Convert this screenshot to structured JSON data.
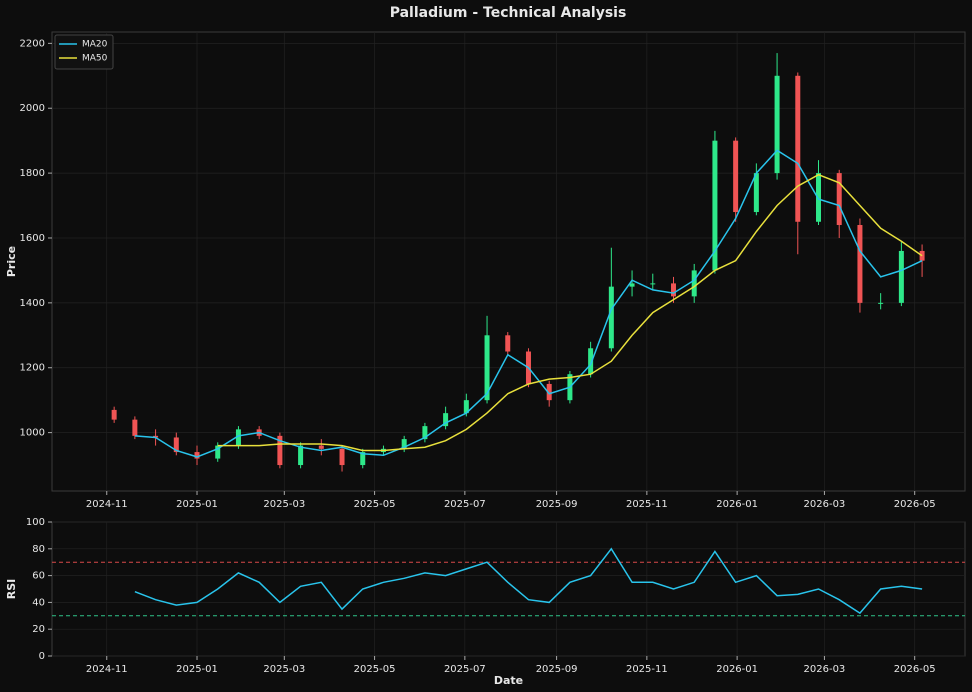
{
  "chart_data": [
    {
      "type": "candlestick",
      "title": "Palladium - Technical Analysis",
      "ylabel": "Price",
      "x": [
        "2024-11-06",
        "2024-11-20",
        "2024-12-04",
        "2024-12-18",
        "2025-01-01",
        "2025-01-15",
        "2025-01-29",
        "2025-02-12",
        "2025-02-26",
        "2025-03-12",
        "2025-03-26",
        "2025-04-09",
        "2025-04-23",
        "2025-05-07",
        "2025-05-21",
        "2025-06-04",
        "2025-06-18",
        "2025-07-02",
        "2025-07-16",
        "2025-07-30",
        "2025-08-13",
        "2025-08-27",
        "2025-09-10",
        "2025-09-24",
        "2025-10-08",
        "2025-10-22",
        "2025-11-05",
        "2025-11-19",
        "2025-12-03",
        "2025-12-17",
        "2025-12-31",
        "2026-01-14",
        "2026-01-28",
        "2026-02-11",
        "2026-02-25",
        "2026-03-11",
        "2026-03-25",
        "2026-04-08",
        "2026-04-22",
        "2026-05-06"
      ],
      "open": [
        1070,
        1040,
        990,
        985,
        940,
        920,
        960,
        1010,
        990,
        900,
        960,
        950,
        900,
        940,
        950,
        980,
        1020,
        1060,
        1100,
        1300,
        1250,
        1150,
        1100,
        1180,
        1260,
        1450,
        1460,
        1460,
        1420,
        1500,
        1900,
        1680,
        1800,
        2100,
        1650,
        1800,
        1640,
        1400,
        1400,
        1560
      ],
      "high": [
        1080,
        1050,
        1010,
        1000,
        960,
        970,
        1020,
        1020,
        1000,
        970,
        980,
        960,
        950,
        960,
        990,
        1030,
        1080,
        1120,
        1360,
        1310,
        1260,
        1160,
        1190,
        1280,
        1570,
        1500,
        1490,
        1480,
        1520,
        1930,
        1910,
        1830,
        2170,
        2110,
        1840,
        1810,
        1660,
        1430,
        1590,
        1580
      ],
      "low": [
        1030,
        980,
        960,
        930,
        900,
        910,
        950,
        980,
        890,
        890,
        930,
        880,
        890,
        930,
        940,
        970,
        1010,
        1050,
        1090,
        1240,
        1140,
        1080,
        1090,
        1170,
        1250,
        1420,
        1440,
        1400,
        1400,
        1490,
        1650,
        1670,
        1780,
        1550,
        1640,
        1600,
        1370,
        1380,
        1390,
        1480
      ],
      "close": [
        1040,
        990,
        985,
        940,
        920,
        960,
        1010,
        990,
        900,
        960,
        950,
        900,
        940,
        950,
        980,
        1020,
        1060,
        1100,
        1300,
        1250,
        1150,
        1100,
        1180,
        1260,
        1450,
        1460,
        1460,
        1420,
        1500,
        1900,
        1680,
        1800,
        2100,
        1650,
        1800,
        1640,
        1400,
        1400,
        1560,
        1530
      ],
      "up_color": "#2ee88a",
      "down_color": "#f05454",
      "series": [
        {
          "name": "MA20",
          "color": "#29c4ec",
          "values": [
            null,
            990,
            985,
            945,
            925,
            950,
            990,
            1000,
            975,
            955,
            945,
            955,
            935,
            930,
            955,
            985,
            1030,
            1060,
            1120,
            1240,
            1200,
            1120,
            1140,
            1210,
            1380,
            1470,
            1440,
            1430,
            1470,
            1560,
            1660,
            1800,
            1870,
            1830,
            1720,
            1700,
            1560,
            1480,
            1500,
            1530
          ]
        },
        {
          "name": "MA50",
          "color": "#e8e03c",
          "values": [
            null,
            null,
            null,
            null,
            null,
            960,
            960,
            960,
            965,
            965,
            965,
            960,
            945,
            945,
            950,
            955,
            975,
            1010,
            1060,
            1120,
            1150,
            1165,
            1170,
            1180,
            1220,
            1300,
            1370,
            1410,
            1450,
            1500,
            1530,
            1620,
            1700,
            1760,
            1795,
            1770,
            1700,
            1630,
            1590,
            1545
          ]
        }
      ],
      "legend": "upper left",
      "grid": true,
      "xlim": [
        "2024-09-25",
        "2026-06-04"
      ],
      "xticks": [
        {
          "value": "2024-11-01",
          "label": "2024-11"
        },
        {
          "value": "2025-01-01",
          "label": "2025-01"
        },
        {
          "value": "2025-03-01",
          "label": "2025-03"
        },
        {
          "value": "2025-05-01",
          "label": "2025-05"
        },
        {
          "value": "2025-07-01",
          "label": "2025-07"
        },
        {
          "value": "2025-09-01",
          "label": "2025-09"
        },
        {
          "value": "2025-11-01",
          "label": "2025-11"
        },
        {
          "value": "2026-01-01",
          "label": "2026-01"
        },
        {
          "value": "2026-03-01",
          "label": "2026-03"
        },
        {
          "value": "2026-05-01",
          "label": "2026-05"
        }
      ],
      "ylim": [
        820,
        2235
      ],
      "yticks": [
        1000,
        1200,
        1400,
        1600,
        1800,
        2000,
        2200
      ]
    },
    {
      "type": "line",
      "ylabel": "RSI",
      "xlabel": "Date",
      "x": [
        "2024-11-06",
        "2024-11-20",
        "2024-12-04",
        "2024-12-18",
        "2025-01-01",
        "2025-01-15",
        "2025-01-29",
        "2025-02-12",
        "2025-02-26",
        "2025-03-12",
        "2025-03-26",
        "2025-04-09",
        "2025-04-23",
        "2025-05-07",
        "2025-05-21",
        "2025-06-04",
        "2025-06-18",
        "2025-07-02",
        "2025-07-16",
        "2025-07-30",
        "2025-08-13",
        "2025-08-27",
        "2025-09-10",
        "2025-09-24",
        "2025-10-08",
        "2025-10-22",
        "2025-11-05",
        "2025-11-19",
        "2025-12-03",
        "2025-12-17",
        "2025-12-31",
        "2026-01-14",
        "2026-01-28",
        "2026-02-11",
        "2026-02-25",
        "2026-03-11",
        "2026-03-25",
        "2026-04-08",
        "2026-04-22",
        "2026-05-06"
      ],
      "series": [
        {
          "name": "RSI",
          "color": "#29c4ec",
          "values": [
            null,
            48,
            42,
            38,
            40,
            50,
            62,
            55,
            40,
            52,
            55,
            35,
            50,
            55,
            58,
            62,
            60,
            65,
            70,
            55,
            42,
            40,
            55,
            60,
            80,
            55,
            55,
            50,
            55,
            78,
            55,
            60,
            45,
            46,
            50,
            42,
            32,
            50,
            52,
            50
          ]
        }
      ],
      "hlines": [
        {
          "value": 70,
          "color": "#d84a4a"
        },
        {
          "value": 30,
          "color": "#2ec48a"
        }
      ],
      "grid": true,
      "xlim": [
        "2024-09-25",
        "2026-06-04"
      ],
      "xticks": [
        {
          "value": "2024-11-01",
          "label": "2024-11"
        },
        {
          "value": "2025-01-01",
          "label": "2025-01"
        },
        {
          "value": "2025-03-01",
          "label": "2025-03"
        },
        {
          "value": "2025-05-01",
          "label": "2025-05"
        },
        {
          "value": "2025-07-01",
          "label": "2025-07"
        },
        {
          "value": "2025-09-01",
          "label": "2025-09"
        },
        {
          "value": "2025-11-01",
          "label": "2025-11"
        },
        {
          "value": "2026-01-01",
          "label": "2026-01"
        },
        {
          "value": "2026-03-01",
          "label": "2026-03"
        },
        {
          "value": "2026-05-01",
          "label": "2026-05"
        }
      ],
      "ylim": [
        0,
        100
      ],
      "yticks": [
        0,
        20,
        40,
        60,
        80,
        100
      ]
    }
  ]
}
